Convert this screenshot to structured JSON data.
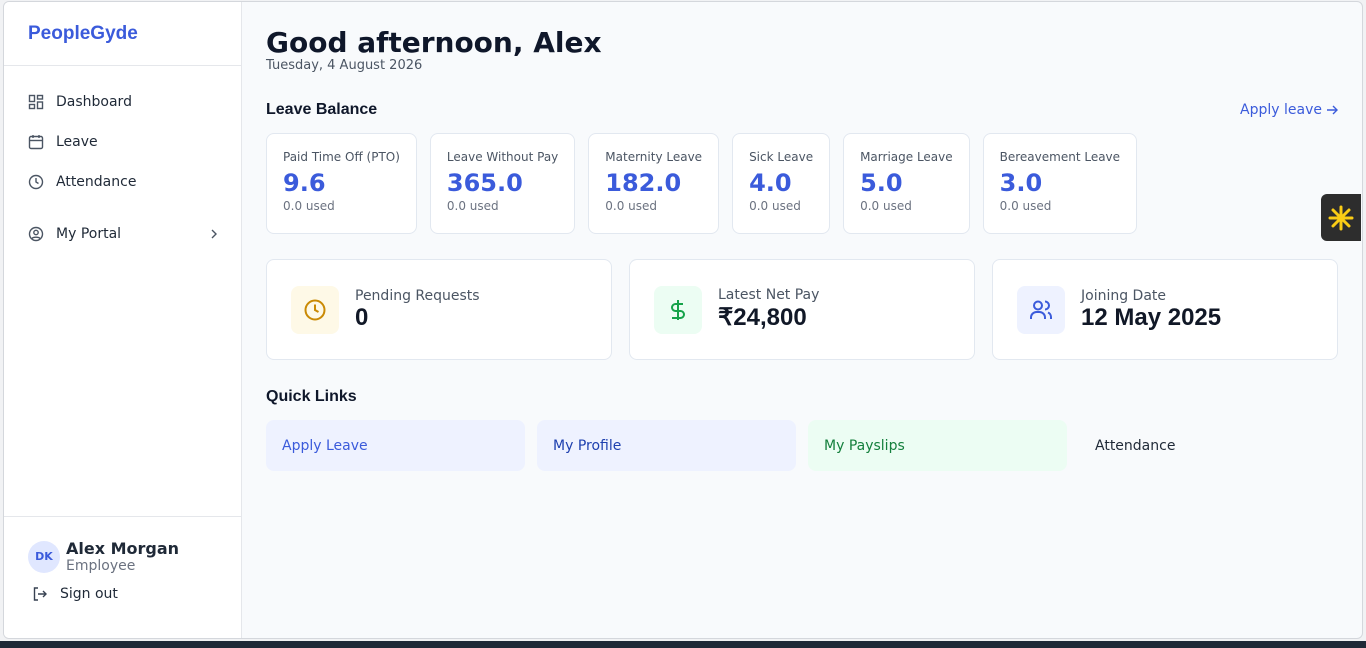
{
  "sidebar": {
    "brand": "PeopleGyde",
    "nav": [
      {
        "label": "Dashboard"
      },
      {
        "label": "Leave"
      },
      {
        "label": "Attendance"
      },
      {
        "label": "My Portal"
      }
    ],
    "user": {
      "initials": "DK",
      "name": "Alex Morgan",
      "role": "Employee"
    },
    "sign_out": "Sign out"
  },
  "header": {
    "greeting": "Good afternoon, Alex",
    "date": "Tuesday, 4 August 2026"
  },
  "leave_balance": {
    "title": "Leave Balance",
    "action": "Apply leave",
    "cards": [
      {
        "name": "Paid Time Off (PTO)",
        "balance": "9.6",
        "used": "0.0 used"
      },
      {
        "name": "Leave Without Pay",
        "balance": "365.0",
        "used": "0.0 used"
      },
      {
        "name": "Maternity Leave",
        "balance": "182.0",
        "used": "0.0 used"
      },
      {
        "name": "Sick Leave",
        "balance": "4.0",
        "used": "0.0 used"
      },
      {
        "name": "Marriage Leave",
        "balance": "5.0",
        "used": "0.0 used"
      },
      {
        "name": "Bereavement Leave",
        "balance": "3.0",
        "used": "0.0 used"
      }
    ]
  },
  "stats": [
    {
      "label": "Pending Requests",
      "value": "0"
    },
    {
      "label": "Latest Net Pay",
      "value": "₹24,800"
    },
    {
      "label": "Joining Date",
      "value": "12 May 2025"
    }
  ],
  "quick_links": {
    "title": "Quick Links",
    "links": [
      "Apply Leave",
      "My Profile",
      "My Payslips",
      "Attendance"
    ]
  }
}
